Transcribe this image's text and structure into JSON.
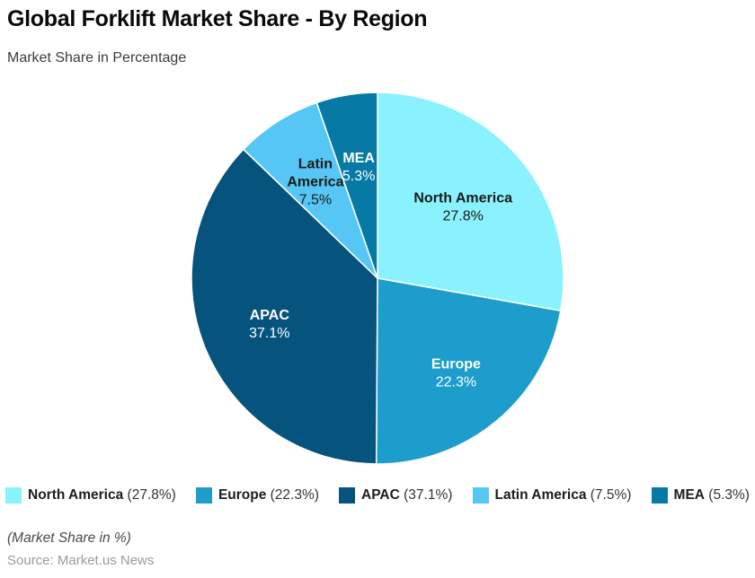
{
  "header": {
    "title": "Global Forklift Market Share - By Region",
    "subtitle": "Market Share in Percentage"
  },
  "footer": {
    "unit_note": "(Market Share in %)",
    "source": "Source: Market.us News"
  },
  "chart_data": {
    "type": "pie",
    "title": "Global Forklift Market Share - By Region",
    "subtitle": "Market Share in Percentage",
    "unit": "percent",
    "start_angle": "top",
    "direction": "clockwise",
    "legend_position": "bottom",
    "slices": [
      {
        "name": "North America",
        "value": 27.8,
        "value_label": "27.8%",
        "color": "#8AF2FE",
        "label_color": "#1a1a1a",
        "name_lines": [
          "North America"
        ],
        "label_r": 0.6
      },
      {
        "name": "Europe",
        "value": 22.3,
        "value_label": "22.3%",
        "color": "#1C9DCC",
        "label_color": "#ffffff",
        "name_lines": [
          "Europe"
        ],
        "label_r": 0.66
      },
      {
        "name": "APAC",
        "value": 37.1,
        "value_label": "37.1%",
        "color": "#06547D",
        "label_color": "#ffffff",
        "name_lines": [
          "APAC"
        ],
        "label_r": 0.63
      },
      {
        "name": "Latin America",
        "value": 7.5,
        "value_label": "7.5%",
        "color": "#56C7F4",
        "label_color": "#1a1a1a",
        "name_lines": [
          "Latin",
          "America"
        ],
        "label_r": 0.62
      },
      {
        "name": "MEA",
        "value": 5.3,
        "value_label": "5.3%",
        "color": "#067AA4",
        "label_color": "#ffffff",
        "name_lines": [
          "MEA"
        ],
        "label_r": 0.61
      }
    ]
  }
}
